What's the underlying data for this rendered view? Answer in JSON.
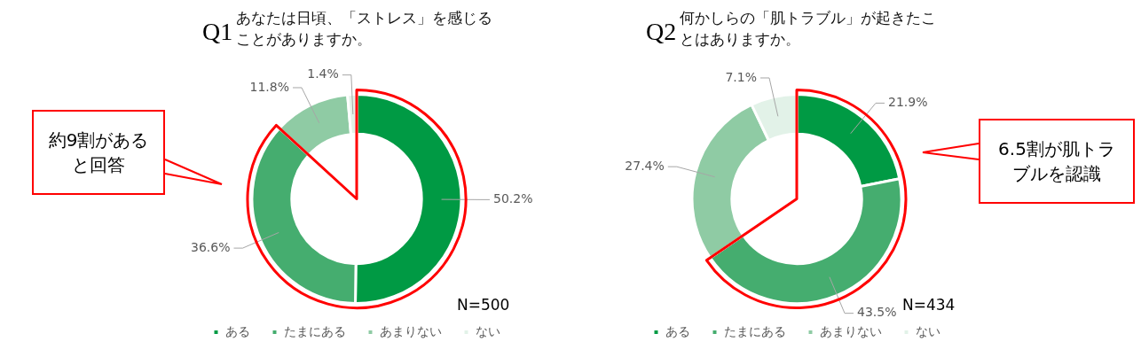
{
  "chart_data": [
    {
      "type": "donut",
      "title": "Q1",
      "subtitle": "あなたは日頃、「ストレス」を感じることがありますか。",
      "categories": [
        "ある",
        "たまにある",
        "あまりない",
        "ない"
      ],
      "values": [
        50.2,
        36.6,
        11.8,
        1.4
      ],
      "value_labels": [
        "50.2%",
        "36.6%",
        "11.8%",
        "1.4%"
      ],
      "colors": [
        "#009a44",
        "#45ad6f",
        "#8fcba4",
        "#e2f2e8"
      ],
      "legend": "bottom",
      "annotations": [
        "約9割があると回答",
        "N=500"
      ]
    },
    {
      "type": "donut",
      "title": "Q2",
      "subtitle": "何かしらの「肌トラブル」が起きたことはありますか。",
      "categories": [
        "ある",
        "たまにある",
        "あまりない",
        "ない"
      ],
      "values": [
        21.9,
        43.5,
        27.4,
        7.1
      ],
      "value_labels": [
        "21.9%",
        "43.5%",
        "27.4%",
        "7.1%"
      ],
      "colors": [
        "#009a44",
        "#45ad6f",
        "#8fcba4",
        "#e2f2e8"
      ],
      "legend": "bottom",
      "annotations": [
        "6.5割が肌トラブルを認識",
        "N=434"
      ]
    }
  ]
}
